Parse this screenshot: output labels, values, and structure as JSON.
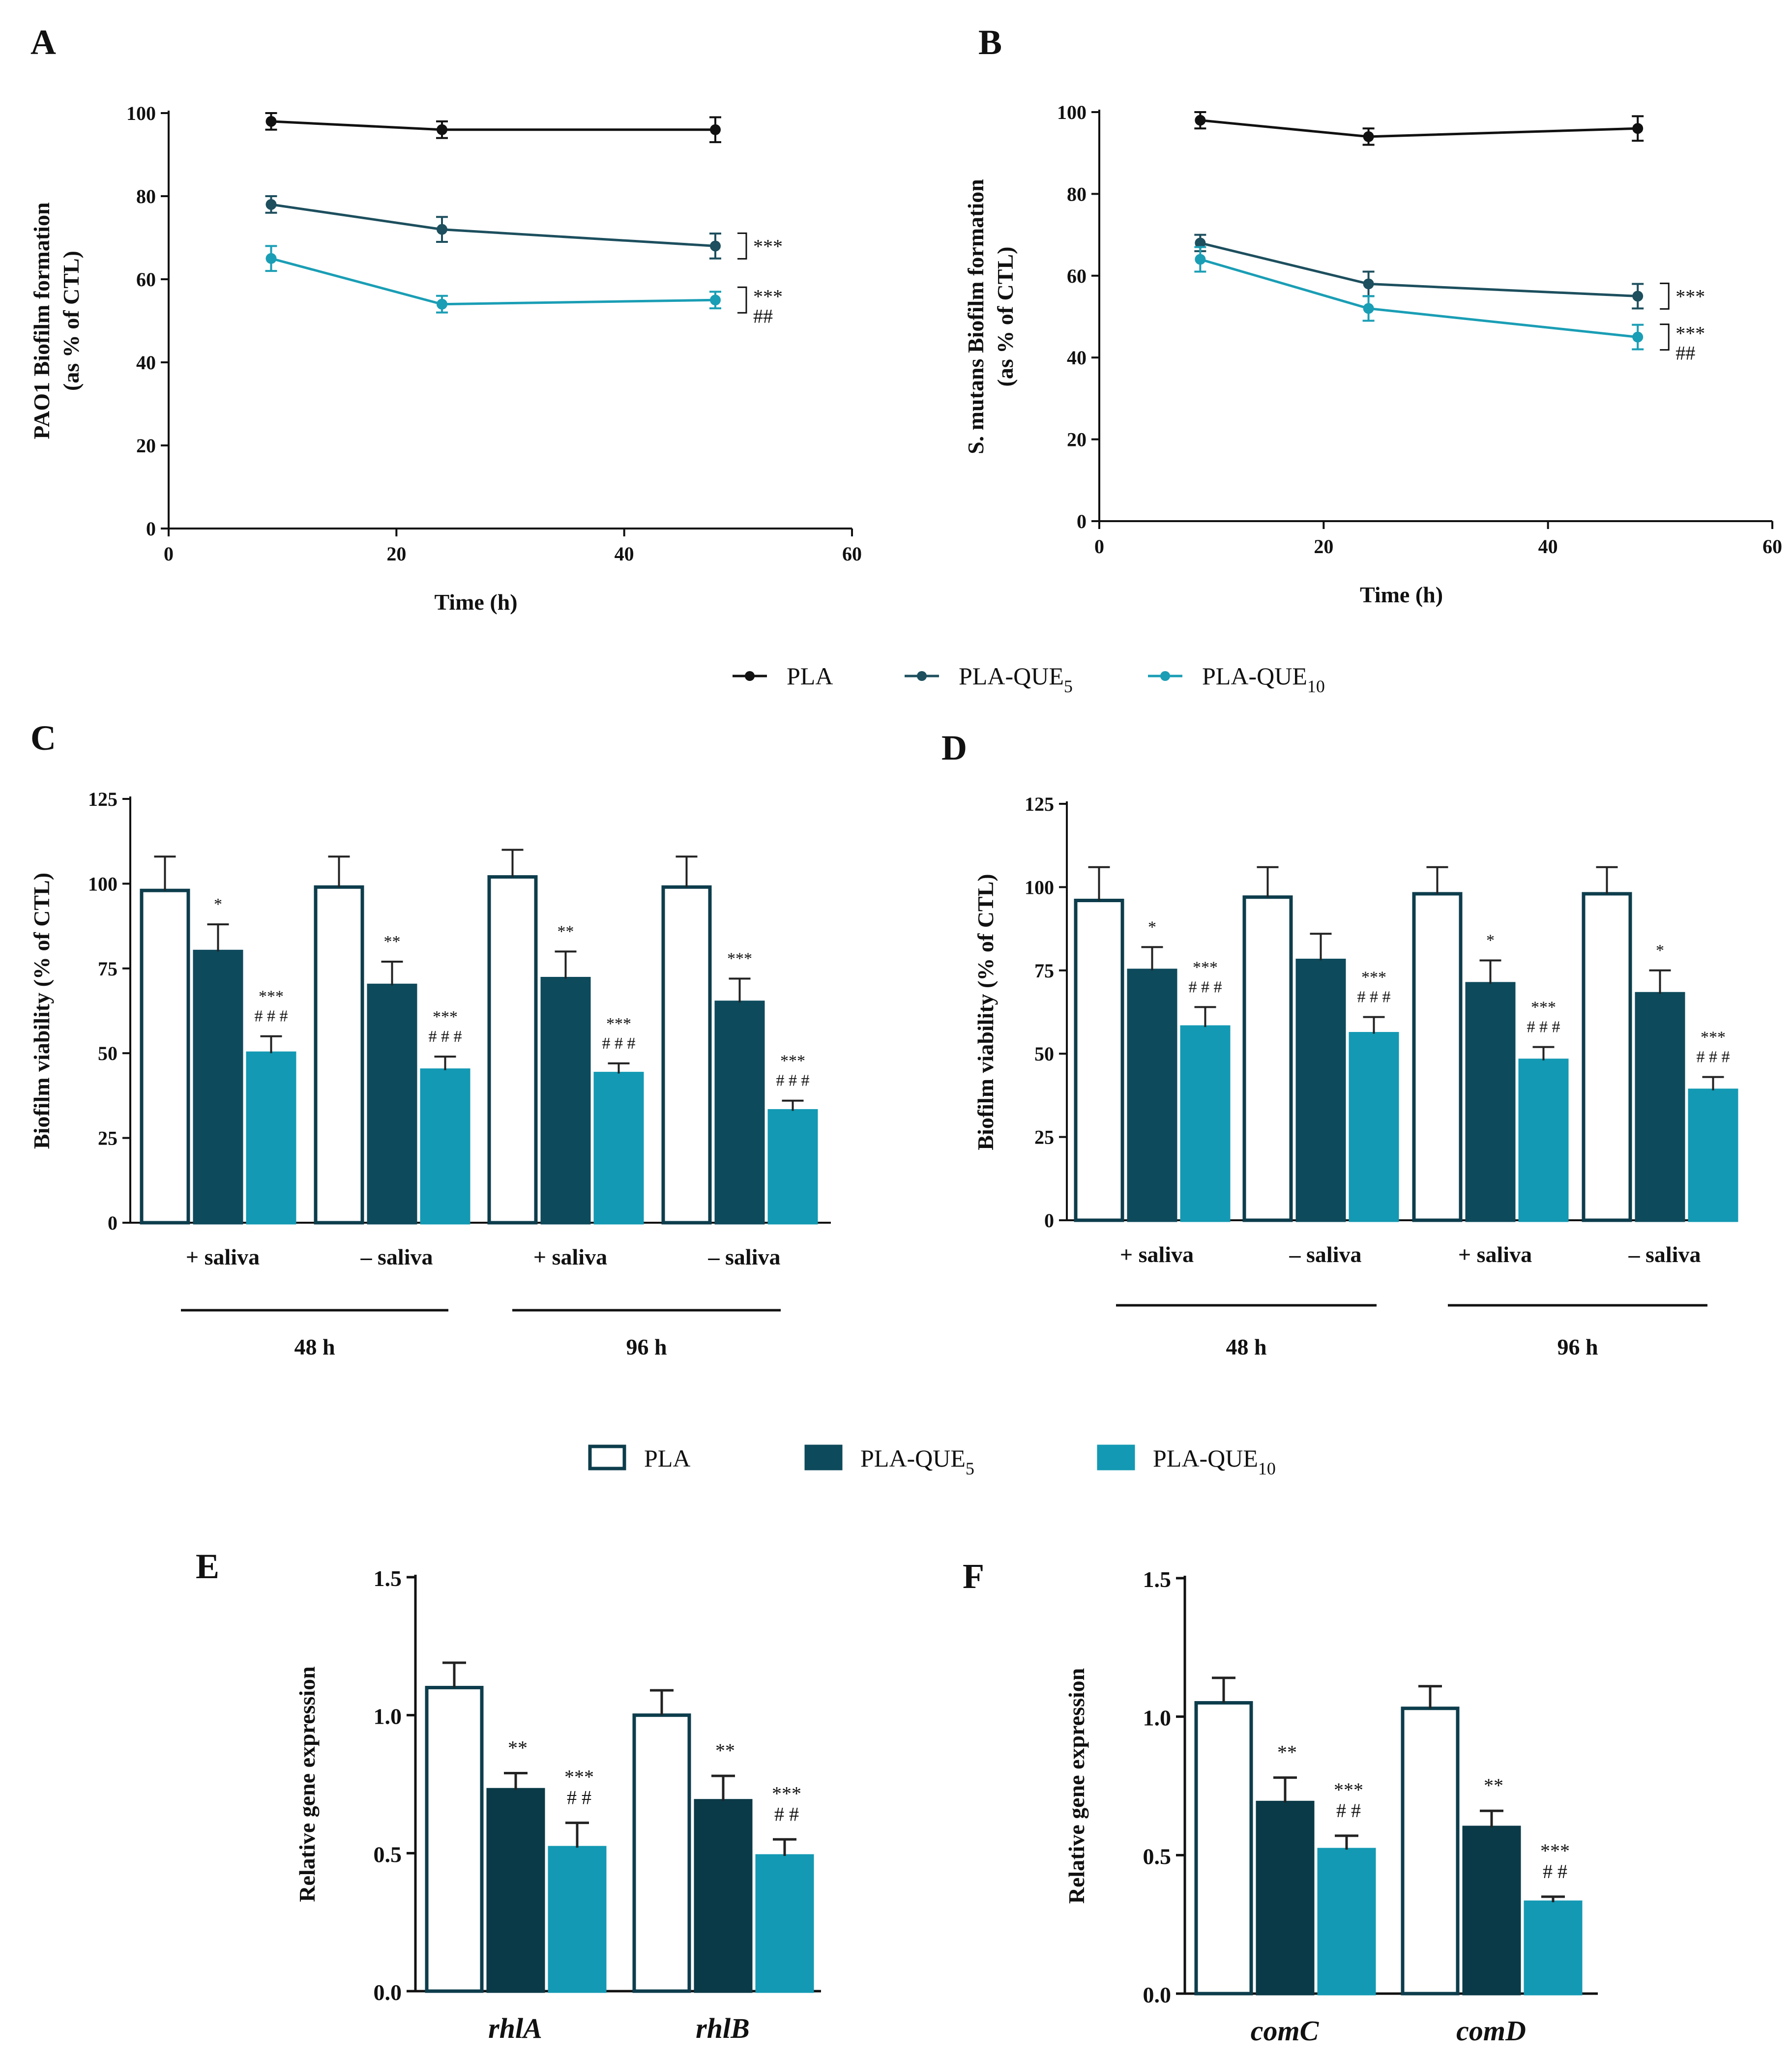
{
  "figure": {
    "legend_lines": [
      {
        "label": "PLA",
        "sub": "",
        "color": "#111111"
      },
      {
        "label": "PLA-QUE",
        "sub": "5",
        "color": "#1d4f5e"
      },
      {
        "label": "PLA-QUE",
        "sub": "10",
        "color": "#1a9eb5"
      }
    ],
    "legend_bars": [
      {
        "label": "PLA",
        "sub": "",
        "fill": "#ffffff",
        "stroke": "#0d3d4c"
      },
      {
        "label": "PLA-QUE",
        "sub": "5",
        "fill": "#0d4a5c",
        "stroke": "#0d4a5c"
      },
      {
        "label": "PLA-QUE",
        "sub": "10",
        "fill": "#1399b3",
        "stroke": "#1399b3"
      }
    ],
    "colors": {
      "pla_line": "#111111",
      "que5_line": "#1d4f5e",
      "que10_line": "#1a9eb5",
      "bar_pla_stroke": "#0d3d4c",
      "bar_que5": "#0d4a5c",
      "bar_que10": "#1399b3"
    }
  },
  "chart_data": [
    {
      "id": "A",
      "type": "line",
      "panel_label": "A",
      "ylabel_lines": [
        "PAO1 Biofilm formation",
        "(as % of CTL)"
      ],
      "xlabel": "Time (h)",
      "xlim": [
        0,
        60
      ],
      "ylim": [
        0,
        100
      ],
      "xticks": [
        0,
        20,
        40,
        60
      ],
      "yticks": [
        0,
        20,
        40,
        60,
        80,
        100
      ],
      "x": [
        9,
        24,
        48
      ],
      "series": [
        {
          "name": "PLA",
          "values": [
            98,
            96,
            96
          ],
          "errors": [
            2,
            2,
            3
          ]
        },
        {
          "name": "PLA-QUE5",
          "values": [
            78,
            72,
            68
          ],
          "errors": [
            2,
            3,
            3
          ]
        },
        {
          "name": "PLA-QUE10",
          "values": [
            65,
            54,
            55
          ],
          "errors": [
            3,
            2,
            2
          ]
        }
      ],
      "annotations": [
        {
          "series": "PLA-QUE5",
          "lines": [
            "***"
          ]
        },
        {
          "series": "PLA-QUE10",
          "lines": [
            "***",
            "##"
          ]
        }
      ]
    },
    {
      "id": "B",
      "type": "line",
      "panel_label": "B",
      "ylabel_lines": [
        "S. mutans Biofilm formation",
        "(as % of CTL)"
      ],
      "xlabel": "Time (h)",
      "xlim": [
        0,
        60
      ],
      "ylim": [
        0,
        100
      ],
      "xticks": [
        0,
        20,
        40,
        60
      ],
      "yticks": [
        0,
        20,
        40,
        60,
        80,
        100
      ],
      "x": [
        9,
        24,
        48
      ],
      "series": [
        {
          "name": "PLA",
          "values": [
            98,
            94,
            96
          ],
          "errors": [
            2,
            2,
            3
          ]
        },
        {
          "name": "PLA-QUE5",
          "values": [
            68,
            58,
            55
          ],
          "errors": [
            2,
            3,
            3
          ]
        },
        {
          "name": "PLA-QUE10",
          "values": [
            64,
            52,
            45
          ],
          "errors": [
            3,
            3,
            3
          ]
        }
      ],
      "annotations": [
        {
          "series": "PLA-QUE5",
          "lines": [
            "***"
          ]
        },
        {
          "series": "PLA-QUE10",
          "lines": [
            "***",
            "##"
          ]
        }
      ]
    },
    {
      "id": "C",
      "type": "bar",
      "panel_label": "C",
      "ylabel": "Biofilm viability (% of CTL)",
      "ylim": [
        0,
        125
      ],
      "yticks": [
        0,
        25,
        50,
        75,
        100,
        125
      ],
      "categories": [
        "+ saliva",
        "– saliva",
        "+ saliva",
        "– saliva"
      ],
      "groups": [
        "48 h",
        "96 h"
      ],
      "series": [
        {
          "name": "PLA",
          "values": [
            98,
            99,
            102,
            99
          ],
          "errors": [
            10,
            9,
            8,
            9
          ]
        },
        {
          "name": "PLA-QUE5",
          "values": [
            80,
            70,
            72,
            65
          ],
          "errors": [
            8,
            7,
            8,
            7
          ]
        },
        {
          "name": "PLA-QUE10",
          "values": [
            50,
            45,
            44,
            33
          ],
          "errors": [
            5,
            4,
            3,
            3
          ]
        }
      ],
      "annotations": [
        [
          "",
          "*",
          "***|# # #"
        ],
        [
          "",
          "**",
          "***|# # #"
        ],
        [
          "",
          "**",
          "***|# # #"
        ],
        [
          "",
          "***",
          "***|# # #"
        ]
      ]
    },
    {
      "id": "D",
      "type": "bar",
      "panel_label": "D",
      "ylabel": "Biofilm viability (% of CTL)",
      "ylim": [
        0,
        125
      ],
      "yticks": [
        0,
        25,
        50,
        75,
        100,
        125
      ],
      "categories": [
        "+ saliva",
        "– saliva",
        "+ saliva",
        "– saliva"
      ],
      "groups": [
        "48 h",
        "96 h"
      ],
      "series": [
        {
          "name": "PLA",
          "values": [
            96,
            97,
            98,
            98
          ],
          "errors": [
            10,
            9,
            8,
            8
          ]
        },
        {
          "name": "PLA-QUE5",
          "values": [
            75,
            78,
            71,
            68
          ],
          "errors": [
            7,
            8,
            7,
            7
          ]
        },
        {
          "name": "PLA-QUE10",
          "values": [
            58,
            56,
            48,
            39
          ],
          "errors": [
            6,
            5,
            4,
            4
          ]
        }
      ],
      "annotations": [
        [
          "",
          "*",
          "***|# # #"
        ],
        [
          "",
          "",
          "***|# # #"
        ],
        [
          "",
          "*",
          "***|# # #"
        ],
        [
          "",
          "*",
          "***|# # #"
        ]
      ]
    },
    {
      "id": "E",
      "type": "bar",
      "panel_label": "E",
      "ylabel": "Relative gene expression",
      "ylim": [
        0,
        1.5
      ],
      "yticks": [
        "0.0",
        "0.5",
        "1.0",
        "1.5"
      ],
      "categories": [
        "rhlA",
        "rhlB"
      ],
      "series": [
        {
          "name": "PLA",
          "values": [
            1.1,
            1.0
          ],
          "errors": [
            0.09,
            0.09
          ]
        },
        {
          "name": "PLA-QUE5",
          "values": [
            0.73,
            0.69
          ],
          "errors": [
            0.06,
            0.09
          ]
        },
        {
          "name": "PLA-QUE10",
          "values": [
            0.52,
            0.49
          ],
          "errors": [
            0.09,
            0.06
          ]
        }
      ],
      "annotations": [
        [
          "",
          "**",
          "***|# #"
        ],
        [
          "",
          "**",
          "***|# #"
        ]
      ]
    },
    {
      "id": "F",
      "type": "bar",
      "panel_label": "F",
      "ylabel": "Relative gene expression",
      "ylim": [
        0,
        1.5
      ],
      "yticks": [
        "0.0",
        "0.5",
        "1.0",
        "1.5"
      ],
      "categories": [
        "comC",
        "comD"
      ],
      "series": [
        {
          "name": "PLA",
          "values": [
            1.05,
            1.03
          ],
          "errors": [
            0.09,
            0.08
          ]
        },
        {
          "name": "PLA-QUE5",
          "values": [
            0.69,
            0.6
          ],
          "errors": [
            0.09,
            0.06
          ]
        },
        {
          "name": "PLA-QUE10",
          "values": [
            0.52,
            0.33
          ],
          "errors": [
            0.05,
            0.02
          ]
        }
      ],
      "annotations": [
        [
          "",
          "**",
          "***|# #"
        ],
        [
          "",
          "**",
          "***|# #"
        ]
      ]
    }
  ]
}
